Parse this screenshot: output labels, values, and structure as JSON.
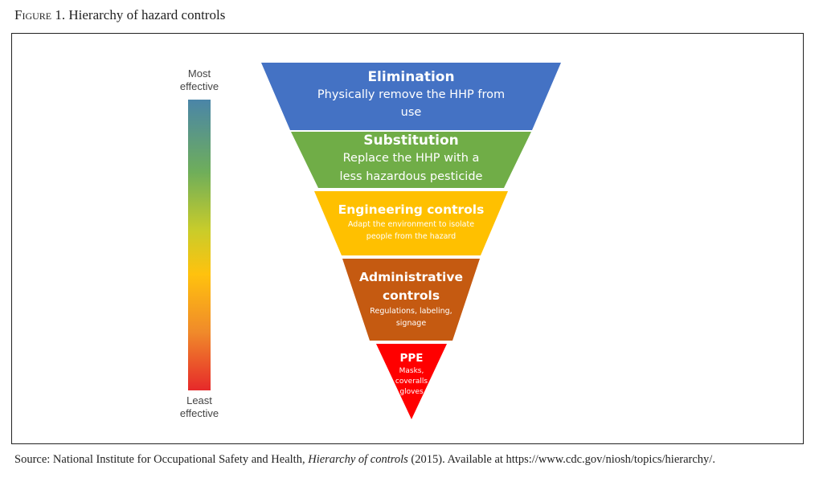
{
  "figure": {
    "label": "Figure 1.",
    "title": "Hierarchy of hazard controls"
  },
  "scale": {
    "top_label_1": "Most",
    "top_label_2": "effective",
    "bottom_label_1": "Least",
    "bottom_label_2": "effective"
  },
  "levels": [
    {
      "title": "Elimination",
      "desc_1": "Physically remove the HHP from",
      "desc_2": "use",
      "color": "#4472c4"
    },
    {
      "title": "Substitution",
      "desc_1": "Replace the HHP with a",
      "desc_2": "less hazardous pesticide",
      "color": "#70ad47"
    },
    {
      "title": "Engineering controls",
      "desc_1": "Adapt the environment to isolate",
      "desc_2": "people from the hazard",
      "color": "#ffc000"
    },
    {
      "title_1": "Administrative",
      "title_2": "controls",
      "desc_1": "Regulations, labeling,",
      "desc_2": "signage",
      "color": "#c55a11"
    },
    {
      "title": "PPE",
      "desc_1": "Masks,",
      "desc_2": "coveralls",
      "desc_3": "gloves",
      "color": "#ff0000"
    }
  ],
  "source": {
    "prefix": "Source: National Institute for Occupational Safety and Health, ",
    "doc": "Hierarchy of controls",
    "suffix": " (2015). Available at https://www.cdc.gov/niosh/topics/hierarchy/."
  }
}
